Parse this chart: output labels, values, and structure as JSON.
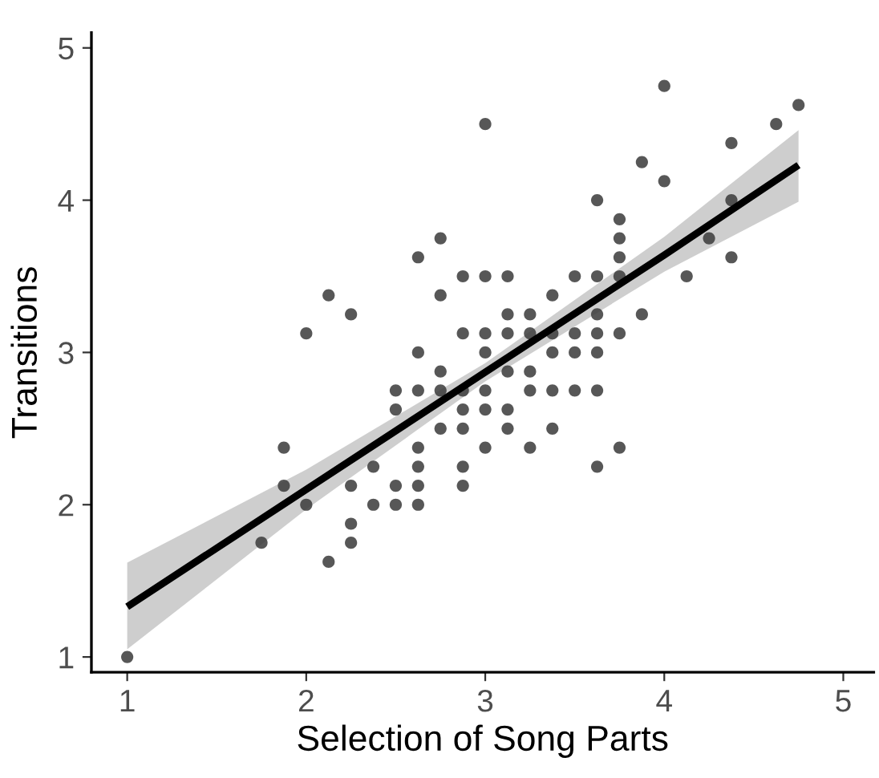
{
  "chart_data": {
    "type": "scatter",
    "xlabel": "Selection of Song Parts",
    "ylabel": "Transitions",
    "xlim": [
      0.8,
      5.17
    ],
    "ylim": [
      0.9,
      5.1
    ],
    "xticks": [
      1,
      2,
      3,
      4,
      5
    ],
    "yticks": [
      1,
      2,
      3,
      4,
      5
    ],
    "grid": false,
    "legend": false,
    "series": [
      {
        "color": "#3a3a3a",
        "marker": "circle",
        "x": [
          1,
          1.75,
          3.875,
          4.0,
          3.625,
          3.75,
          3.75,
          3.75,
          2.75,
          2.625,
          2.875,
          3.0,
          3.125,
          3.5,
          3.625,
          3.75,
          4.125,
          2.125,
          2.75,
          3.375,
          2.25,
          3.125,
          3.25,
          3.625,
          3.875,
          2.0,
          2.875,
          3.0,
          3.125,
          3.25,
          3.375,
          3.5,
          3.625,
          3.75,
          2.625,
          3.0,
          3.375,
          3.5,
          3.625,
          2.75,
          3.125,
          3.25,
          2.5,
          2.625,
          2.75,
          2.875,
          3.0,
          3.25,
          3.375,
          3.5,
          3.625,
          2.5,
          2.875,
          3.0,
          3.125,
          2.75,
          2.875,
          3.125,
          3.375,
          1.875,
          2.625,
          3.0,
          3.25,
          3.75,
          2.375,
          2.625,
          2.875,
          3.625,
          1.875,
          2.25,
          2.5,
          2.625,
          2.875,
          2.0,
          2.375,
          2.5,
          2.625,
          2.25,
          2.25,
          2.125,
          3.0,
          4.0,
          4.75,
          4.625,
          4.375,
          4.375,
          4.25,
          4.375
        ],
        "values": [
          1,
          1.75,
          4.25,
          4.125,
          4.0,
          3.875,
          3.75,
          3.625,
          3.75,
          3.625,
          3.5,
          3.5,
          3.5,
          3.5,
          3.5,
          3.5,
          3.5,
          3.375,
          3.375,
          3.375,
          3.25,
          3.25,
          3.25,
          3.25,
          3.25,
          3.125,
          3.125,
          3.125,
          3.125,
          3.125,
          3.125,
          3.125,
          3.125,
          3.125,
          3.0,
          3.0,
          3.0,
          3.0,
          3.0,
          2.875,
          2.875,
          2.875,
          2.75,
          2.75,
          2.75,
          2.75,
          2.75,
          2.75,
          2.75,
          2.75,
          2.75,
          2.625,
          2.625,
          2.625,
          2.625,
          2.5,
          2.5,
          2.5,
          2.5,
          2.375,
          2.375,
          2.375,
          2.375,
          2.375,
          2.25,
          2.25,
          2.25,
          2.25,
          2.125,
          2.125,
          2.125,
          2.125,
          2.125,
          2.0,
          2.0,
          2.0,
          2.0,
          1.875,
          1.75,
          1.625,
          4.5,
          4.75,
          4.625,
          4.5,
          4.375,
          4.0,
          3.75,
          3.625
        ]
      },
      {
        "type": "line",
        "color": "#000000",
        "line_style": "solid",
        "x": [
          1,
          2,
          3,
          4,
          4.75
        ],
        "values": [
          1.33,
          2.1,
          2.87,
          3.64,
          4.23
        ],
        "lower": [
          1.05,
          1.97,
          2.81,
          3.53,
          3.99
        ],
        "upper": [
          1.62,
          2.23,
          2.93,
          3.76,
          4.46
        ]
      }
    ]
  }
}
